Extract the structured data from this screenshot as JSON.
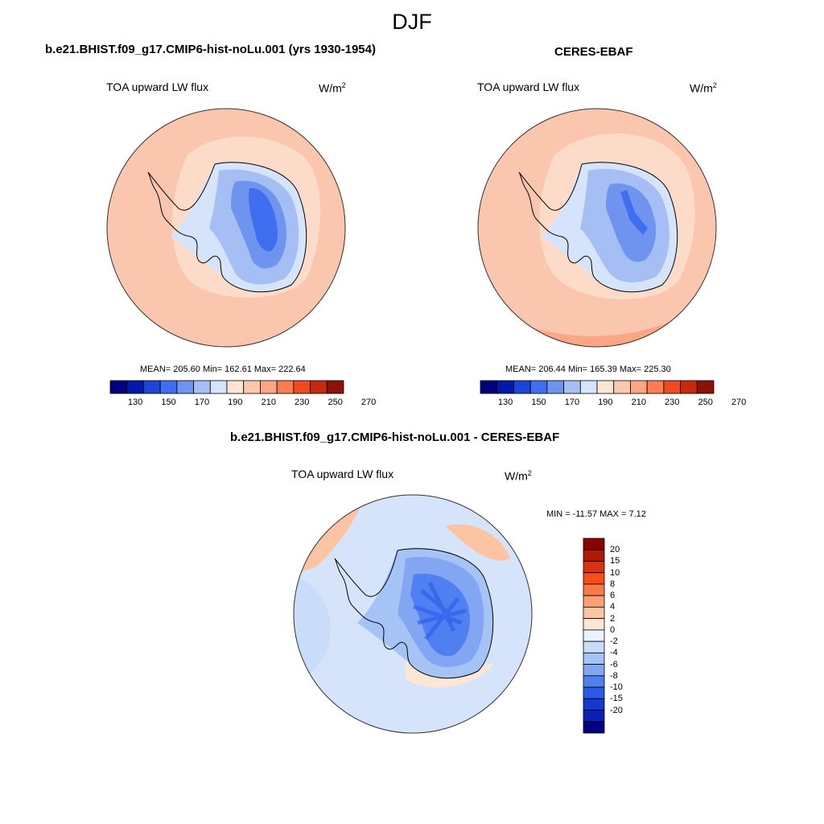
{
  "figure": {
    "title": "DJF"
  },
  "panels": {
    "model": {
      "title": "b.e21.BHIST.f09_g17.CMIP6-hist-noLu.001 (yrs 1930-1954)",
      "variable": "TOA upward LW flux",
      "units_base": "W/m",
      "units_exp": "2",
      "stats": "MEAN= 205.60  Min= 162.61  Max= 222.64"
    },
    "obs": {
      "title": "CERES-EBAF",
      "variable": "TOA upward LW flux",
      "units_base": "W/m",
      "units_exp": "2",
      "stats": "MEAN= 206.44  Min= 165.39  Max= 225.30"
    },
    "diff": {
      "title": "b.e21.BHIST.f09_g17.CMIP6-hist-noLu.001 - CERES-EBAF",
      "variable": "TOA upward LW flux",
      "units_base": "W/m",
      "units_exp": "2",
      "stats": "MIN = -11.57 MAX =   7.12"
    }
  },
  "colorbars": {
    "absolute": {
      "colors": [
        "#00007f",
        "#0019a8",
        "#1f45d8",
        "#3f6ef0",
        "#6f94f0",
        "#a5bff5",
        "#d6e4fb",
        "#fde5d4",
        "#fcc8ac",
        "#fca683",
        "#fb7d51",
        "#f04a1f",
        "#c62810",
        "#8c1108"
      ],
      "labels": [
        "130",
        "150",
        "170",
        "190",
        "210",
        "230",
        "250",
        "270"
      ]
    },
    "difference": {
      "colors": [
        "#8b0000",
        "#b01a05",
        "#d93210",
        "#fb4e16",
        "#fb7a45",
        "#fba076",
        "#fcc4a3",
        "#fde6d6",
        "#eaf2fd",
        "#c9dcfa",
        "#a6c3f6",
        "#82a6f2",
        "#4f7ff0",
        "#2a5ae8",
        "#1438d0",
        "#0a20b4",
        "#000080"
      ],
      "labels": [
        "20",
        "15",
        "10",
        "8",
        "6",
        "4",
        "2",
        "0",
        "-2",
        "-4",
        "-6",
        "-8",
        "-10",
        "-15",
        "-20"
      ]
    }
  },
  "maps": {
    "ocean_model": "#fbc6ae",
    "ocean_obs": "#fbc6ae",
    "ocean_diff": "#d6e4fb"
  }
}
